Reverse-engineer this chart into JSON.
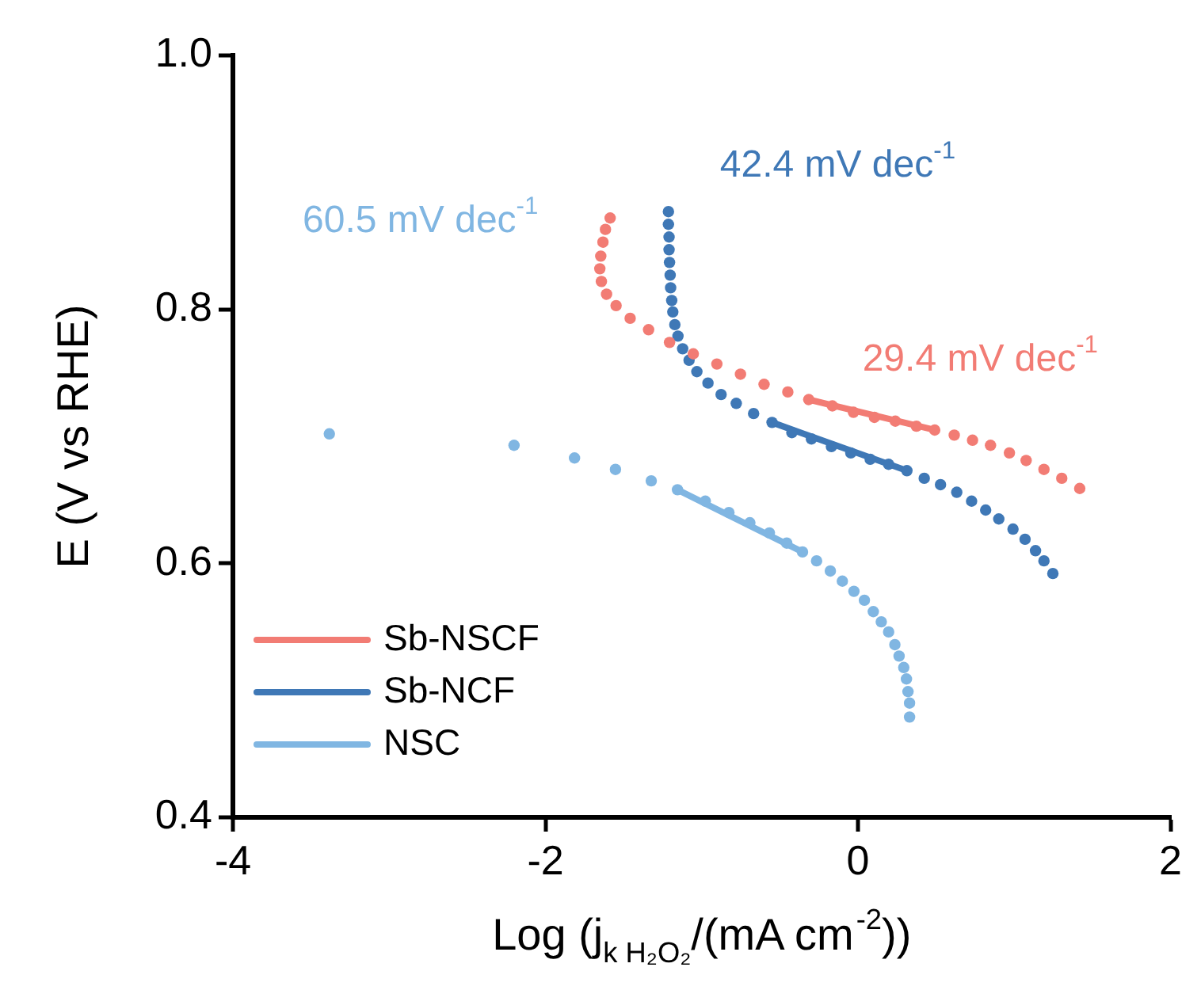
{
  "chart_data": {
    "type": "scatter",
    "xlabel": "Log (j$_{k H₂O₂}$/(mA cm$^{-2}$))",
    "ylabel": "E (V vs RHE)",
    "xlim": [
      -4,
      2
    ],
    "xticks": [
      -4,
      -2,
      0,
      2
    ],
    "ylim": [
      0.4,
      1.0
    ],
    "yticks": [
      0.4,
      0.6,
      0.8,
      {
        "value": 1,
        "label": "1.0"
      }
    ],
    "grid": false,
    "legend": "bottom left",
    "series": [
      {
        "name": "Sb-NSCF",
        "marker": "circle",
        "color": "#f27c74",
        "x": [
          -1.586,
          -1.616,
          -1.632,
          -1.646,
          -1.652,
          -1.642,
          -1.609,
          -1.548,
          -1.458,
          -1.34,
          -1.206,
          -1.054,
          -0.903,
          -0.752,
          -0.601,
          -0.449,
          -0.315,
          -0.164,
          -0.029,
          0.105,
          0.239,
          0.374,
          0.491,
          0.616,
          0.733,
          0.848,
          0.969,
          1.076,
          1.19,
          1.304,
          1.419
        ],
        "values": [
          0.872,
          0.863,
          0.853,
          0.842,
          0.832,
          0.822,
          0.812,
          0.803,
          0.793,
          0.784,
          0.774,
          0.765,
          0.757,
          0.749,
          0.741,
          0.735,
          0.729,
          0.724,
          0.719,
          0.715,
          0.712,
          0.708,
          0.705,
          0.701,
          0.697,
          0.693,
          0.687,
          0.681,
          0.674,
          0.667,
          0.659
        ]
      },
      {
        "name": "Sb-NCF",
        "marker": "circle",
        "color": "#3f78b6",
        "x": [
          -1.213,
          -1.213,
          -1.209,
          -1.209,
          -1.206,
          -1.202,
          -1.199,
          -1.192,
          -1.185,
          -1.172,
          -1.152,
          -1.122,
          -1.081,
          -1.031,
          -0.96,
          -0.876,
          -0.779,
          -0.668,
          -0.55,
          -0.423,
          -0.298,
          -0.17,
          -0.046,
          0.078,
          0.196,
          0.313,
          0.424,
          0.528,
          0.632,
          0.727,
          0.817,
          0.901,
          0.992,
          1.069,
          1.136,
          1.19,
          1.247
        ],
        "values": [
          0.877,
          0.867,
          0.857,
          0.847,
          0.837,
          0.827,
          0.817,
          0.807,
          0.798,
          0.788,
          0.779,
          0.769,
          0.76,
          0.751,
          0.742,
          0.733,
          0.726,
          0.718,
          0.711,
          0.703,
          0.698,
          0.692,
          0.687,
          0.682,
          0.678,
          0.673,
          0.667,
          0.662,
          0.656,
          0.649,
          0.642,
          0.635,
          0.627,
          0.619,
          0.61,
          0.602,
          0.592
        ]
      },
      {
        "name": "NSC",
        "marker": "circle",
        "color": "#80b6e2",
        "x": [
          -3.383,
          -2.201,
          -1.814,
          -1.552,
          -1.323,
          -1.155,
          -0.977,
          -0.826,
          -0.692,
          -0.567,
          -0.456,
          -0.355,
          -0.265,
          -0.177,
          -0.1,
          -0.026,
          0.041,
          0.098,
          0.149,
          0.196,
          0.236,
          0.263,
          0.293,
          0.31,
          0.32,
          0.33,
          0.33
        ],
        "values": [
          0.702,
          0.693,
          0.683,
          0.674,
          0.665,
          0.658,
          0.649,
          0.64,
          0.632,
          0.624,
          0.616,
          0.609,
          0.602,
          0.594,
          0.586,
          0.578,
          0.571,
          0.562,
          0.554,
          0.546,
          0.536,
          0.527,
          0.518,
          0.509,
          0.499,
          0.49,
          0.479
        ]
      },
      {
        "type": "line",
        "color": "#f27c74",
        "x": [
          -0.315,
          0.491
        ],
        "values": [
          0.729,
          0.705
        ]
      },
      {
        "type": "line",
        "color": "#3f78b6",
        "x": [
          -0.55,
          0.313
        ],
        "values": [
          0.711,
          0.673
        ]
      },
      {
        "type": "line",
        "color": "#80b6e2",
        "x": [
          -1.155,
          -0.355
        ],
        "values": [
          0.658,
          0.609
        ]
      }
    ],
    "annotations": [
      "29.4 mV dec$^{-1}$",
      "42.4 mV dec$^{-1}$",
      "60.5 mV dec$^{-1}$"
    ]
  }
}
